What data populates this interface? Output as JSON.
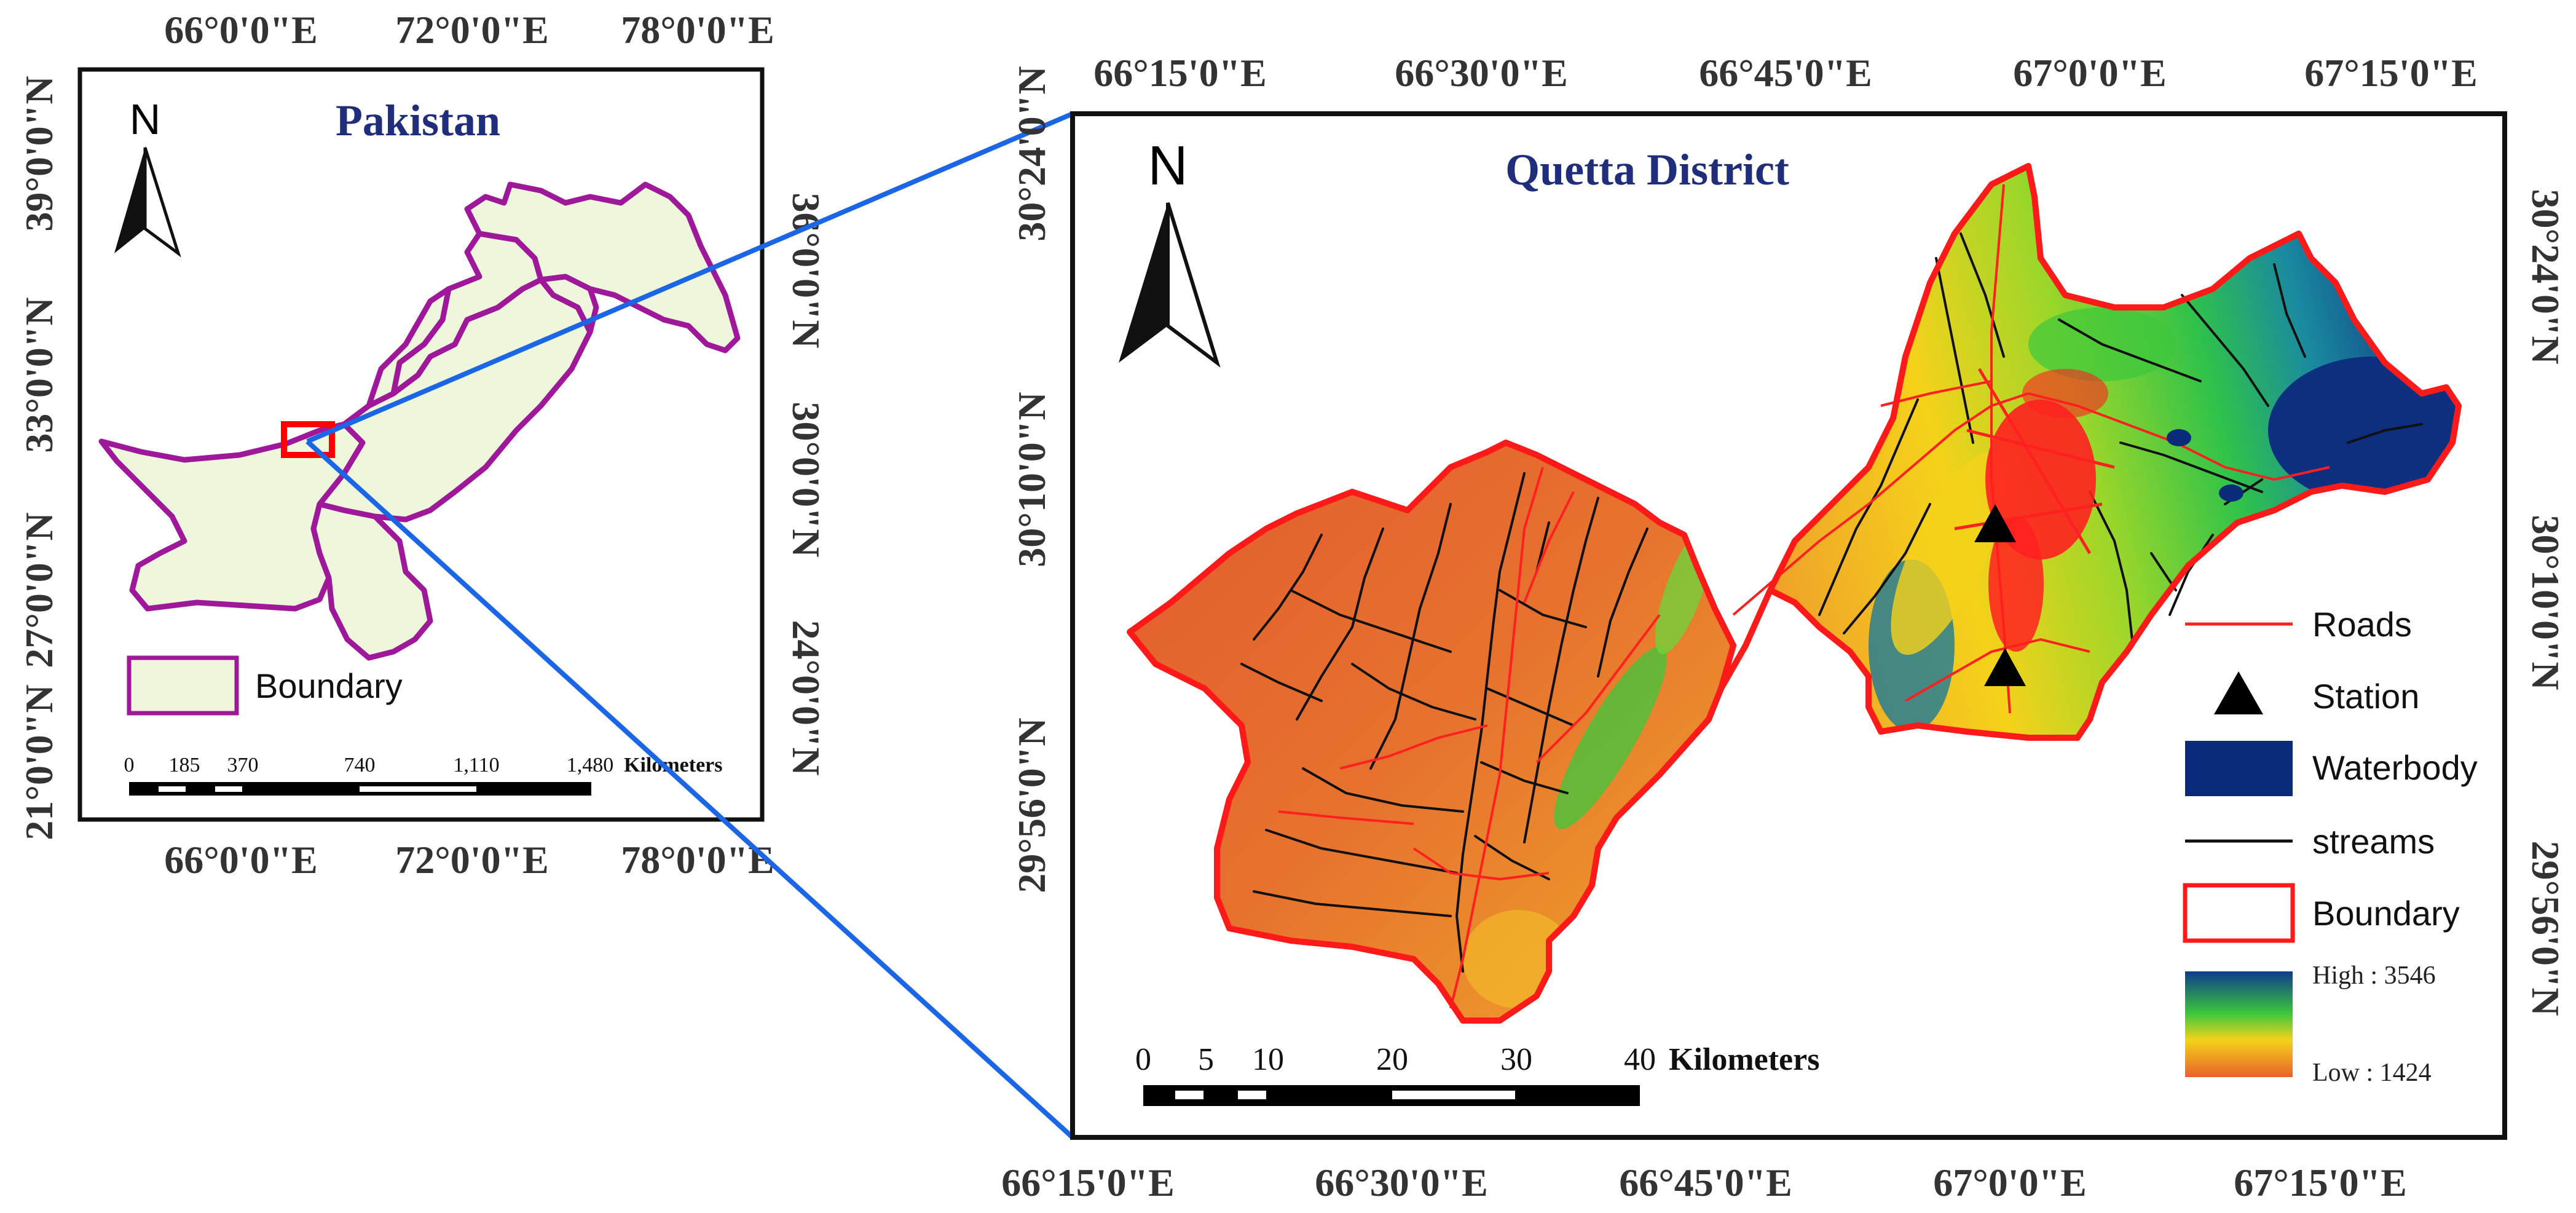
{
  "inset_map": {
    "title": "Pakistan",
    "north_label": "N",
    "top_ticks": [
      "66°0'0\"E",
      "72°0'0\"E",
      "78°0'0\"E"
    ],
    "bottom_ticks": [
      "66°0'0\"E",
      "72°0'0\"E",
      "78°0'0\"E"
    ],
    "left_ticks": [
      "39°0'0\"N",
      "33°0'0\"N",
      "27°0'0\"N",
      "21°0'0\"N"
    ],
    "right_ticks": [
      "36°0'0\"N",
      "30°0'0\"N",
      "24°0'0\"N"
    ],
    "legend_boundary": "Boundary",
    "scale_labels": [
      "0",
      "185",
      "370",
      "740",
      "1,110",
      "1,480"
    ],
    "scale_unit": "Kilometers",
    "colors": {
      "province_fill": "#eef7dc",
      "province_line": "#a0189a",
      "highlight": "#ff0000"
    }
  },
  "main_map": {
    "title": "Quetta District",
    "north_label": "N",
    "top_ticks": [
      "66°15'0\"E",
      "66°30'0\"E",
      "66°45'0\"E",
      "67°0'0\"E",
      "67°15'0\"E"
    ],
    "bottom_ticks": [
      "66°15'0\"E",
      "66°30'0\"E",
      "66°45'0\"E",
      "67°0'0\"E",
      "67°15'0\"E"
    ],
    "left_ticks": [
      "30°24'0\"N",
      "30°10'0\"N",
      "29°56'0\"N"
    ],
    "right_ticks": [
      "30°24'0\"N",
      "30°10'0\"N",
      "29°56'0\"N"
    ],
    "legend": {
      "roads": "Roads",
      "station": "Station",
      "waterbody": "Waterbody",
      "streams": "streams",
      "boundary": "Boundary",
      "high": "High : 3546",
      "low": "Low : 1424"
    },
    "scale_labels": [
      "0",
      "5",
      "10",
      "20",
      "30",
      "40"
    ],
    "scale_unit": "Kilometers",
    "colors": {
      "boundary": "#ff1a1a",
      "roads": "#ff2020",
      "streams": "#111111",
      "waterbody": "#0a2a7a",
      "elev_low": "#e8622a",
      "elev_mid": "#f5d21a",
      "elev_green": "#3cc83c",
      "elev_high": "#0d3c8c",
      "leader_line": "#1a66e6"
    }
  }
}
